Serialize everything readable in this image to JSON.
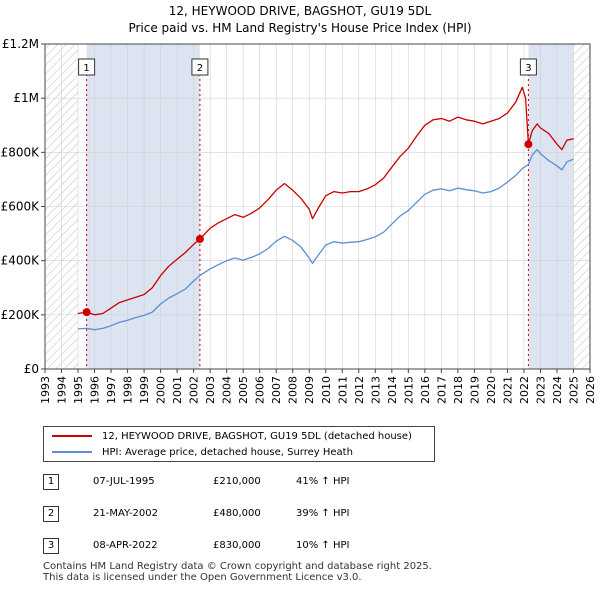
{
  "title_line1": "12, HEYWOOD DRIVE, BAGSHOT, GU19 5DL",
  "title_line2": "Price paid vs. HM Land Registry's House Price Index (HPI)",
  "colors": {
    "property": "#cc0000",
    "hpi": "#5b8fd1",
    "shade": "#dce4f2",
    "grid": "#d0d0d0",
    "marker_line": "#cc0000"
  },
  "legend": {
    "property_label": "12, HEYWOOD DRIVE, BAGSHOT, GU19 5DL (detached house)",
    "hpi_label": "HPI: Average price, detached house, Surrey Heath"
  },
  "transactions": [
    {
      "num": "1",
      "date": "07-JUL-1995",
      "price": "£210,000",
      "hpi_change": "41% ↑ HPI"
    },
    {
      "num": "2",
      "date": "21-MAY-2002",
      "price": "£480,000",
      "hpi_change": "39% ↑ HPI"
    },
    {
      "num": "3",
      "date": "08-APR-2022",
      "price": "£830,000",
      "hpi_change": "10% ↑ HPI"
    }
  ],
  "footer": {
    "line1": "Contains HM Land Registry data © Crown copyright and database right 2025.",
    "line2": "This data is licensed under the Open Government Licence v3.0."
  },
  "chart_data": {
    "type": "line",
    "title": "12, HEYWOOD DRIVE, BAGSHOT, GU19 5DL",
    "subtitle": "Price paid vs. HM Land Registry's House Price Index (HPI)",
    "xlabel": "",
    "ylabel": "",
    "xlim": [
      1993,
      2026
    ],
    "ylim": [
      0,
      1200000
    ],
    "y_ticks": [
      {
        "value": 0,
        "label": "£0"
      },
      {
        "value": 200000,
        "label": "£200K"
      },
      {
        "value": 400000,
        "label": "£400K"
      },
      {
        "value": 600000,
        "label": "£600K"
      },
      {
        "value": 800000,
        "label": "£800K"
      },
      {
        "value": 1000000,
        "label": "£1M"
      },
      {
        "value": 1200000,
        "label": "£1.2M"
      }
    ],
    "x_ticks": [
      "1993",
      "1994",
      "1995",
      "1996",
      "1997",
      "1998",
      "1999",
      "2000",
      "2001",
      "2002",
      "2003",
      "2004",
      "2005",
      "2006",
      "2007",
      "2008",
      "2009",
      "2010",
      "2011",
      "2012",
      "2013",
      "2014",
      "2015",
      "2016",
      "2017",
      "2018",
      "2019",
      "2020",
      "2021",
      "2022",
      "2023",
      "2024",
      "2025",
      "2026"
    ],
    "grid": true,
    "shaded_ranges": [
      [
        1995.52,
        2002.38
      ],
      [
        2022.27,
        2025.0
      ]
    ],
    "hatched_ranges": [
      [
        1993,
        1995.0
      ],
      [
        2025.0,
        2026
      ]
    ],
    "markers": [
      {
        "label": "1",
        "x": 1995.52,
        "y": 210000
      },
      {
        "label": "2",
        "x": 2002.38,
        "y": 480000
      },
      {
        "label": "3",
        "x": 2022.27,
        "y": 830000
      }
    ],
    "series": [
      {
        "name": "12, HEYWOOD DRIVE, BAGSHOT, GU19 5DL (detached house)",
        "points": [
          [
            1995.0,
            205000
          ],
          [
            1995.52,
            210000
          ],
          [
            1996.0,
            200000
          ],
          [
            1996.5,
            205000
          ],
          [
            1997.0,
            225000
          ],
          [
            1997.5,
            245000
          ],
          [
            1998.0,
            255000
          ],
          [
            1998.5,
            265000
          ],
          [
            1999.0,
            275000
          ],
          [
            1999.5,
            300000
          ],
          [
            2000.0,
            345000
          ],
          [
            2000.5,
            380000
          ],
          [
            2001.0,
            405000
          ],
          [
            2001.5,
            430000
          ],
          [
            2002.0,
            460000
          ],
          [
            2002.38,
            480000
          ],
          [
            2003.0,
            520000
          ],
          [
            2003.5,
            540000
          ],
          [
            2004.0,
            555000
          ],
          [
            2004.5,
            570000
          ],
          [
            2005.0,
            560000
          ],
          [
            2005.5,
            575000
          ],
          [
            2006.0,
            595000
          ],
          [
            2006.5,
            625000
          ],
          [
            2007.0,
            660000
          ],
          [
            2007.5,
            685000
          ],
          [
            2008.0,
            660000
          ],
          [
            2008.5,
            630000
          ],
          [
            2009.0,
            590000
          ],
          [
            2009.2,
            555000
          ],
          [
            2009.6,
            600000
          ],
          [
            2010.0,
            640000
          ],
          [
            2010.5,
            655000
          ],
          [
            2011.0,
            650000
          ],
          [
            2011.5,
            655000
          ],
          [
            2012.0,
            655000
          ],
          [
            2012.5,
            665000
          ],
          [
            2013.0,
            680000
          ],
          [
            2013.5,
            705000
          ],
          [
            2014.0,
            745000
          ],
          [
            2014.5,
            785000
          ],
          [
            2015.0,
            815000
          ],
          [
            2015.5,
            860000
          ],
          [
            2016.0,
            900000
          ],
          [
            2016.5,
            920000
          ],
          [
            2017.0,
            925000
          ],
          [
            2017.5,
            915000
          ],
          [
            2018.0,
            930000
          ],
          [
            2018.5,
            920000
          ],
          [
            2019.0,
            915000
          ],
          [
            2019.5,
            905000
          ],
          [
            2020.0,
            915000
          ],
          [
            2020.5,
            925000
          ],
          [
            2021.0,
            945000
          ],
          [
            2021.5,
            985000
          ],
          [
            2021.9,
            1040000
          ],
          [
            2022.1,
            1000000
          ],
          [
            2022.27,
            830000
          ],
          [
            2022.5,
            880000
          ],
          [
            2022.8,
            905000
          ],
          [
            2023.0,
            890000
          ],
          [
            2023.5,
            870000
          ],
          [
            2024.0,
            830000
          ],
          [
            2024.3,
            810000
          ],
          [
            2024.6,
            845000
          ],
          [
            2025.0,
            850000
          ]
        ]
      },
      {
        "name": "HPI: Average price, detached house, Surrey Heath",
        "points": [
          [
            1995.0,
            148000
          ],
          [
            1995.52,
            150000
          ],
          [
            1996.0,
            145000
          ],
          [
            1996.5,
            150000
          ],
          [
            1997.0,
            160000
          ],
          [
            1997.5,
            172000
          ],
          [
            1998.0,
            180000
          ],
          [
            1998.5,
            190000
          ],
          [
            1999.0,
            198000
          ],
          [
            1999.5,
            210000
          ],
          [
            2000.0,
            240000
          ],
          [
            2000.5,
            262000
          ],
          [
            2001.0,
            278000
          ],
          [
            2001.5,
            295000
          ],
          [
            2002.0,
            325000
          ],
          [
            2002.38,
            345000
          ],
          [
            2003.0,
            370000
          ],
          [
            2003.5,
            385000
          ],
          [
            2004.0,
            400000
          ],
          [
            2004.5,
            410000
          ],
          [
            2005.0,
            402000
          ],
          [
            2005.5,
            412000
          ],
          [
            2006.0,
            425000
          ],
          [
            2006.5,
            445000
          ],
          [
            2007.0,
            472000
          ],
          [
            2007.5,
            490000
          ],
          [
            2008.0,
            475000
          ],
          [
            2008.5,
            450000
          ],
          [
            2009.0,
            410000
          ],
          [
            2009.2,
            390000
          ],
          [
            2009.6,
            425000
          ],
          [
            2010.0,
            458000
          ],
          [
            2010.5,
            470000
          ],
          [
            2011.0,
            465000
          ],
          [
            2011.5,
            468000
          ],
          [
            2012.0,
            470000
          ],
          [
            2012.5,
            478000
          ],
          [
            2013.0,
            488000
          ],
          [
            2013.5,
            505000
          ],
          [
            2014.0,
            535000
          ],
          [
            2014.5,
            565000
          ],
          [
            2015.0,
            585000
          ],
          [
            2015.5,
            615000
          ],
          [
            2016.0,
            645000
          ],
          [
            2016.5,
            660000
          ],
          [
            2017.0,
            665000
          ],
          [
            2017.5,
            658000
          ],
          [
            2018.0,
            668000
          ],
          [
            2018.5,
            662000
          ],
          [
            2019.0,
            658000
          ],
          [
            2019.5,
            650000
          ],
          [
            2020.0,
            655000
          ],
          [
            2020.5,
            668000
          ],
          [
            2021.0,
            690000
          ],
          [
            2021.5,
            715000
          ],
          [
            2021.9,
            740000
          ],
          [
            2022.27,
            755000
          ],
          [
            2022.5,
            790000
          ],
          [
            2022.8,
            810000
          ],
          [
            2023.0,
            795000
          ],
          [
            2023.5,
            770000
          ],
          [
            2024.0,
            750000
          ],
          [
            2024.3,
            735000
          ],
          [
            2024.6,
            765000
          ],
          [
            2025.0,
            775000
          ]
        ]
      }
    ]
  }
}
